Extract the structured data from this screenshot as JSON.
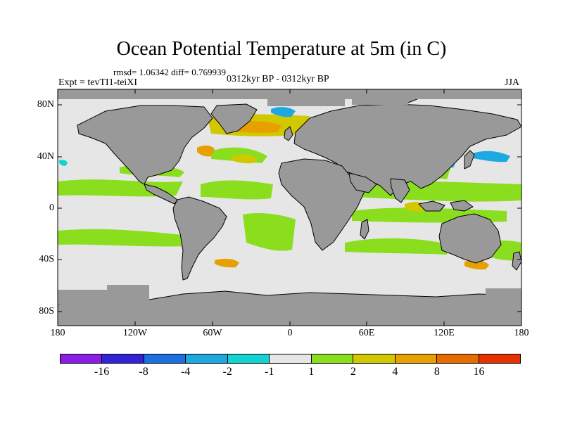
{
  "title": "Ocean Potential Temperature at 5m (in C)",
  "stats": "rmsd= 1.06342  diff= 0.769939",
  "experiment": "Expt = tevTI1-teiXI",
  "period": "0312kyr BP - 0312kyr BP",
  "season": "JJA",
  "y_ticks": [
    "80N",
    "40N",
    "0",
    "40S",
    "80S"
  ],
  "x_ticks": [
    "180",
    "120W",
    "60W",
    "0",
    "60E",
    "120E",
    "180"
  ],
  "colorbar": {
    "colors": [
      "#8a1ee6",
      "#3224d6",
      "#1e6fe0",
      "#1ea8e0",
      "#14d2d2",
      "#e6e6e6",
      "#8ade1e",
      "#d2c800",
      "#e6a000",
      "#e66c00",
      "#e63200"
    ],
    "labels": [
      "-16",
      "-8",
      "-4",
      "-2",
      "-1",
      "1",
      "2",
      "4",
      "8",
      "16"
    ]
  },
  "land_color": "#999999",
  "ocean_color": "#e6e6e6"
}
